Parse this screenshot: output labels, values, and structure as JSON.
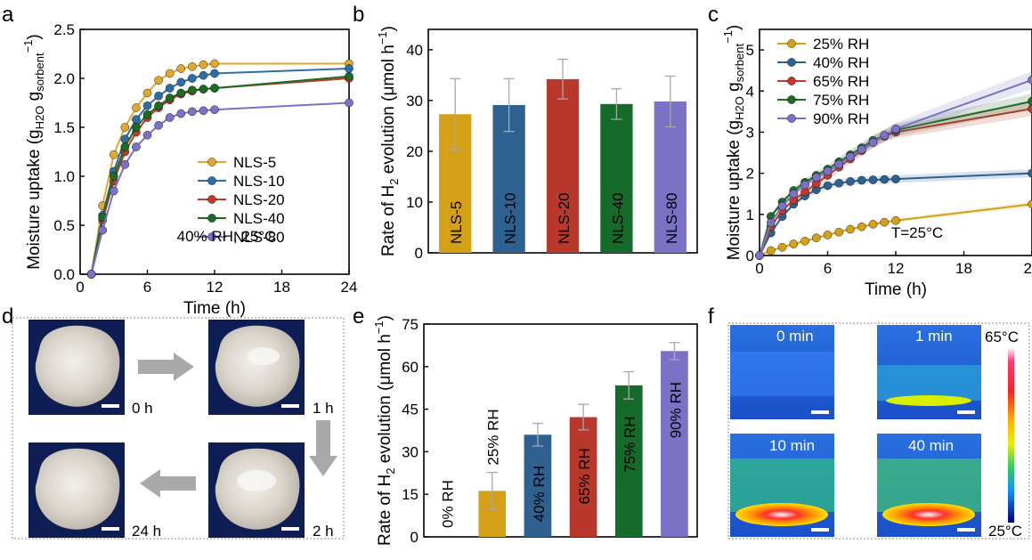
{
  "panels": {
    "a": "a",
    "b": "b",
    "c": "c",
    "d": "d",
    "e": "e",
    "f": "f"
  },
  "chart_data": [
    {
      "id": "a",
      "type": "line",
      "xlabel": "Time (h)",
      "ylabel_main": "Moisture uptake (g",
      "ylabel_sub1": "H2O",
      "ylabel_mid": " g",
      "ylabel_sub2": "sorbent",
      "ylabel_sup": "−1",
      "ylabel_end": ")",
      "xlim": [
        0,
        24
      ],
      "ylim": [
        0,
        2.5
      ],
      "xticks": [
        0,
        6,
        12,
        18,
        24
      ],
      "yticks": [
        0.0,
        0.5,
        1.0,
        1.5,
        2.0,
        2.5
      ],
      "ytick_labels": [
        "0.0",
        "0.5",
        "1.0",
        "1.5",
        "2.0",
        "2.5"
      ],
      "annotation": "40% RH, 25°C",
      "legend": "center-right",
      "series": [
        {
          "name": "NLS-5",
          "color": "#e0a82e",
          "x": [
            1,
            2,
            3,
            4,
            5,
            6,
            7,
            8,
            9,
            10,
            11,
            12,
            24
          ],
          "y": [
            0,
            0.7,
            1.22,
            1.5,
            1.7,
            1.85,
            1.98,
            2.05,
            2.1,
            2.12,
            2.14,
            2.15,
            2.15
          ]
        },
        {
          "name": "NLS-10",
          "color": "#2e6ea7",
          "x": [
            1,
            2,
            3,
            4,
            5,
            6,
            7,
            8,
            9,
            10,
            11,
            12,
            24
          ],
          "y": [
            0,
            0.6,
            1.05,
            1.38,
            1.58,
            1.72,
            1.82,
            1.9,
            1.96,
            2.0,
            2.03,
            2.05,
            2.1
          ]
        },
        {
          "name": "NLS-20",
          "color": "#c0392b",
          "x": [
            1,
            2,
            3,
            4,
            5,
            6,
            7,
            8,
            9,
            10,
            11,
            12,
            24
          ],
          "y": [
            0,
            0.55,
            0.95,
            1.25,
            1.45,
            1.6,
            1.7,
            1.78,
            1.84,
            1.87,
            1.89,
            1.9,
            2.0
          ]
        },
        {
          "name": "NLS-40",
          "color": "#1e6b24",
          "x": [
            1,
            2,
            3,
            4,
            5,
            6,
            7,
            8,
            9,
            10,
            11,
            12,
            24
          ],
          "y": [
            0,
            0.58,
            1.0,
            1.3,
            1.5,
            1.63,
            1.72,
            1.8,
            1.85,
            1.88,
            1.89,
            1.9,
            2.02
          ]
        },
        {
          "name": "NLS-80",
          "color": "#7b72c6",
          "x": [
            1,
            2,
            3,
            4,
            5,
            6,
            7,
            8,
            9,
            10,
            11,
            12,
            24
          ],
          "y": [
            0,
            0.45,
            0.85,
            1.12,
            1.3,
            1.42,
            1.52,
            1.6,
            1.64,
            1.66,
            1.67,
            1.68,
            1.75
          ]
        }
      ]
    },
    {
      "id": "b",
      "type": "bar",
      "ylabel_main": "Rate of H",
      "ylabel_sub": "2",
      "ylabel_mid": " evolution (μmol h",
      "ylabel_sup": "−1",
      "ylabel_end": ")",
      "ylim": [
        0,
        44
      ],
      "yticks": [
        0,
        10,
        20,
        30,
        40
      ],
      "categories": [
        "NLS-5",
        "NLS-10",
        "NLS-20",
        "NLS-40",
        "NLS-80"
      ],
      "values": [
        27.3,
        29.1,
        34.2,
        29.3,
        29.8
      ],
      "errors": [
        7.0,
        5.2,
        3.9,
        3.0,
        5.0
      ],
      "colors": [
        "#d4a017",
        "#2e6190",
        "#b8392c",
        "#156b2a",
        "#7b72c6"
      ]
    },
    {
      "id": "c",
      "type": "line",
      "xlabel": "Time (h)",
      "ylabel_main": "Moisture uptake (g",
      "ylabel_sub1": "H2O",
      "ylabel_mid": " g",
      "ylabel_sub2": "sorbent",
      "ylabel_sup": "−1",
      "ylabel_end": ")",
      "xlim": [
        0,
        24
      ],
      "ylim": [
        0,
        5.5
      ],
      "xticks": [
        0,
        6,
        12,
        18,
        24
      ],
      "yticks": [
        0,
        1,
        2,
        3,
        4,
        5
      ],
      "annotation": "T=25°C",
      "legend": "top-left",
      "series": [
        {
          "name": "25% RH",
          "color": "#d4a017",
          "x": [
            0,
            1,
            2,
            3,
            4,
            5,
            6,
            7,
            8,
            9,
            10,
            11,
            12,
            24
          ],
          "y": [
            0,
            0.12,
            0.2,
            0.28,
            0.35,
            0.43,
            0.5,
            0.57,
            0.64,
            0.7,
            0.76,
            0.81,
            0.85,
            1.25
          ]
        },
        {
          "name": "40% RH",
          "color": "#2e6190",
          "x": [
            0,
            1,
            2,
            3,
            4,
            5,
            6,
            7,
            8,
            9,
            10,
            11,
            12,
            24
          ],
          "y": [
            0,
            0.55,
            0.95,
            1.25,
            1.45,
            1.6,
            1.7,
            1.76,
            1.8,
            1.83,
            1.84,
            1.85,
            1.86,
            2.0
          ]
        },
        {
          "name": "65% RH",
          "color": "#c0392b",
          "x": [
            0,
            1,
            2,
            3,
            4,
            5,
            6,
            7,
            8,
            9,
            10,
            11,
            12,
            24
          ],
          "y": [
            0,
            0.7,
            1.1,
            1.35,
            1.55,
            1.75,
            1.95,
            2.15,
            2.35,
            2.55,
            2.75,
            2.9,
            3.0,
            3.57
          ]
        },
        {
          "name": "75% RH",
          "color": "#1e6b24",
          "x": [
            0,
            1,
            2,
            3,
            4,
            5,
            6,
            7,
            8,
            9,
            10,
            11,
            12,
            24
          ],
          "y": [
            0,
            0.95,
            1.3,
            1.58,
            1.78,
            1.95,
            2.1,
            2.28,
            2.45,
            2.62,
            2.8,
            2.92,
            3.05,
            3.75
          ]
        },
        {
          "name": "90% RH",
          "color": "#7b72c6",
          "x": [
            0,
            1,
            2,
            3,
            4,
            5,
            6,
            7,
            8,
            9,
            10,
            11,
            12,
            24
          ],
          "y": [
            0,
            0.8,
            1.2,
            1.5,
            1.72,
            1.9,
            2.05,
            2.22,
            2.4,
            2.58,
            2.75,
            2.92,
            3.08,
            4.27
          ]
        }
      ]
    },
    {
      "id": "e",
      "type": "bar",
      "ylabel_main": "Rate of H",
      "ylabel_sub": "2",
      "ylabel_mid": " evolution (μmol h",
      "ylabel_sup": "−1",
      "ylabel_end": ")",
      "ylim": [
        0,
        75
      ],
      "yticks": [
        0,
        15,
        30,
        45,
        60,
        75
      ],
      "categories": [
        "0% RH",
        "25% RH",
        "40% RH",
        "65% RH",
        "75% RH",
        "90% RH"
      ],
      "values": [
        0,
        16.2,
        36.0,
        42.2,
        53.4,
        65.5
      ],
      "errors": [
        0,
        6.5,
        4.0,
        4.5,
        4.8,
        3.0
      ],
      "colors": [
        "#ffffff",
        "#d4a017",
        "#2e6190",
        "#b8392c",
        "#156b2a",
        "#7b72c6"
      ]
    }
  ],
  "photos_d": {
    "labels": [
      "0 h",
      "1 h",
      "2 h",
      "24 h"
    ]
  },
  "thermal_f": {
    "labels": [
      "0 min",
      "1 min",
      "10 min",
      "40 min"
    ],
    "scale_max": "65°C",
    "scale_min": "25°C"
  }
}
